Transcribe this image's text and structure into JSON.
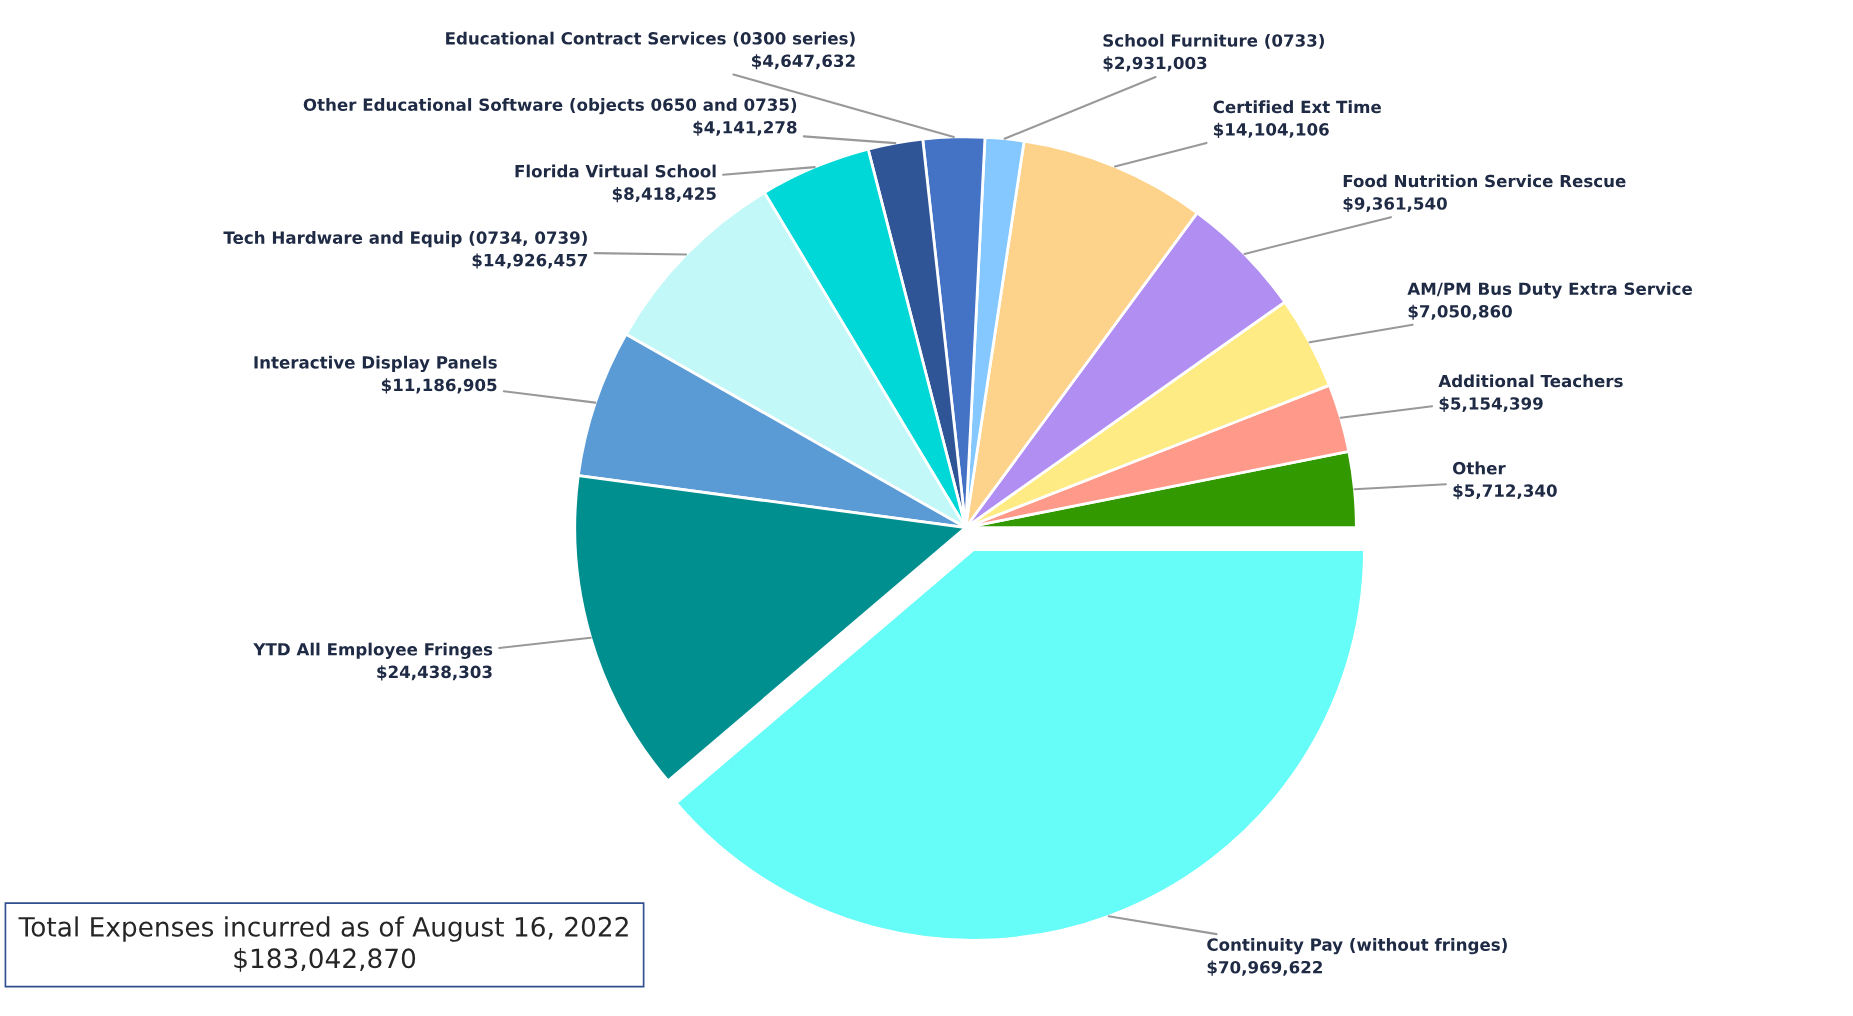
{
  "chart_data": {
    "type": "pie",
    "categories": [
      "Other",
      "Additional Teachers",
      "AM/PM Bus Duty Extra Service",
      "Food Nutrition Service Rescue",
      "Certified Ext Time",
      "School Furniture (0733)",
      "Educational Contract Services (0300 series)",
      "Other Educational Software (objects 0650 and 0735)",
      "Florida Virtual School",
      "Tech Hardware and Equip (0734, 0739)",
      "Interactive Display Panels",
      "YTD All Employee Fringes",
      "Continuity Pay (without fringes)"
    ],
    "values": [
      5712340,
      5154399,
      7050860,
      9361540,
      14104106,
      2931003,
      4647632,
      4141278,
      8418425,
      14926457,
      11186905,
      24438303,
      70969622
    ],
    "value_labels": [
      "$5,712,340",
      "$5,154,399",
      "$7,050,860",
      "$9,361,540",
      "$14,104,106",
      "$2,931,003",
      "$4,647,632",
      "$4,141,278",
      "$8,418,425",
      "$14,926,457",
      "$11,186,905",
      "$24,438,303",
      "$70,969,622"
    ],
    "colors": [
      "#339900",
      "#ff9a8a",
      "#ffeb84",
      "#b18ff2",
      "#fdd38c",
      "#84c8ff",
      "#4472c4",
      "#2f5597",
      "#00d8d8",
      "#c2f8f8",
      "#5b9bd5",
      "#008f8f",
      "#66fcf8"
    ],
    "legend": false,
    "annotations": [
      "Total Expenses incurred as of August 16, 2022\n$183,042,870"
    ]
  }
}
